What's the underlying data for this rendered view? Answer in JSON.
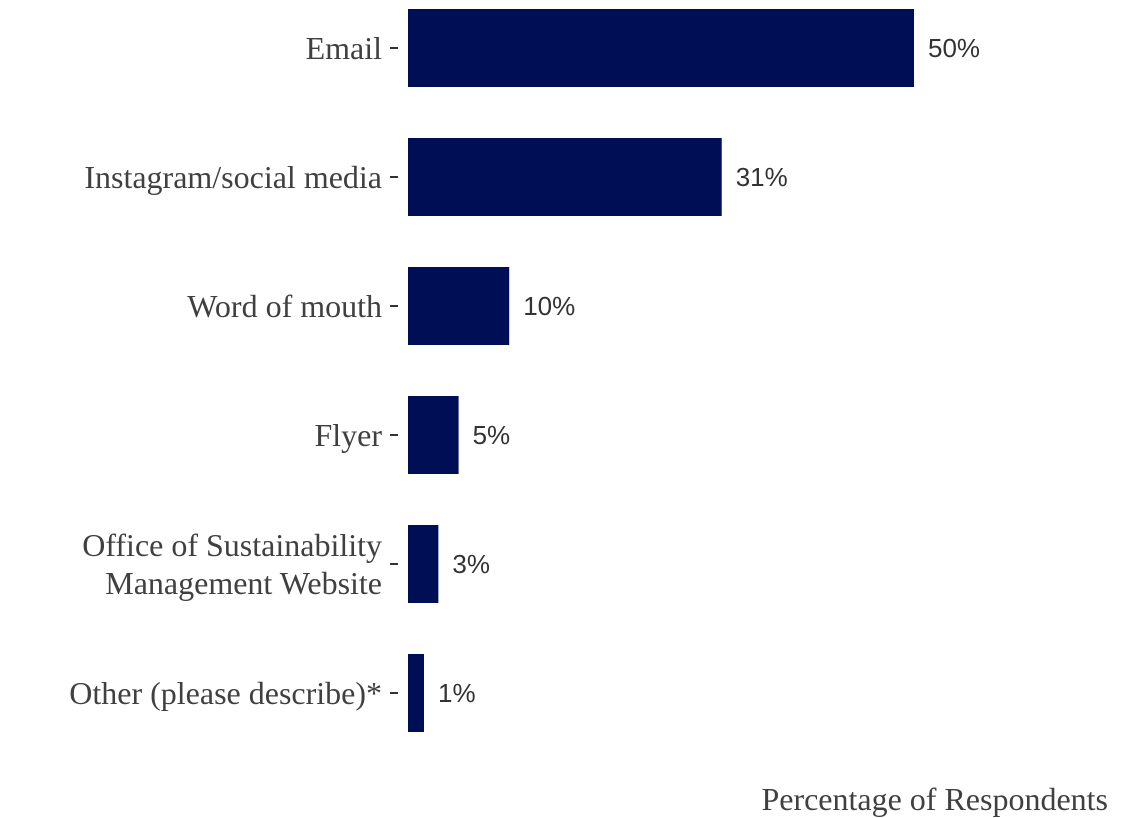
{
  "chart_data": {
    "type": "bar",
    "orientation": "horizontal",
    "categories": [
      [
        "Email"
      ],
      [
        "Instagram/social media"
      ],
      [
        "Word of mouth"
      ],
      [
        "Flyer"
      ],
      [
        "Office of Sustainability",
        "Management Website"
      ],
      [
        "Other (please describe)*"
      ]
    ],
    "values": [
      50,
      31,
      10,
      5,
      3,
      1
    ],
    "value_labels": [
      "50%",
      "31%",
      "10%",
      "5%",
      "3%",
      "1%"
    ],
    "unit": "%",
    "title": "",
    "xlabel": "Percentage of Respondents",
    "ylabel": "",
    "xlim": [
      0,
      70
    ],
    "grid": false,
    "legend": "none",
    "colors": {
      "bar": "#000F55",
      "text": "#404040"
    }
  }
}
